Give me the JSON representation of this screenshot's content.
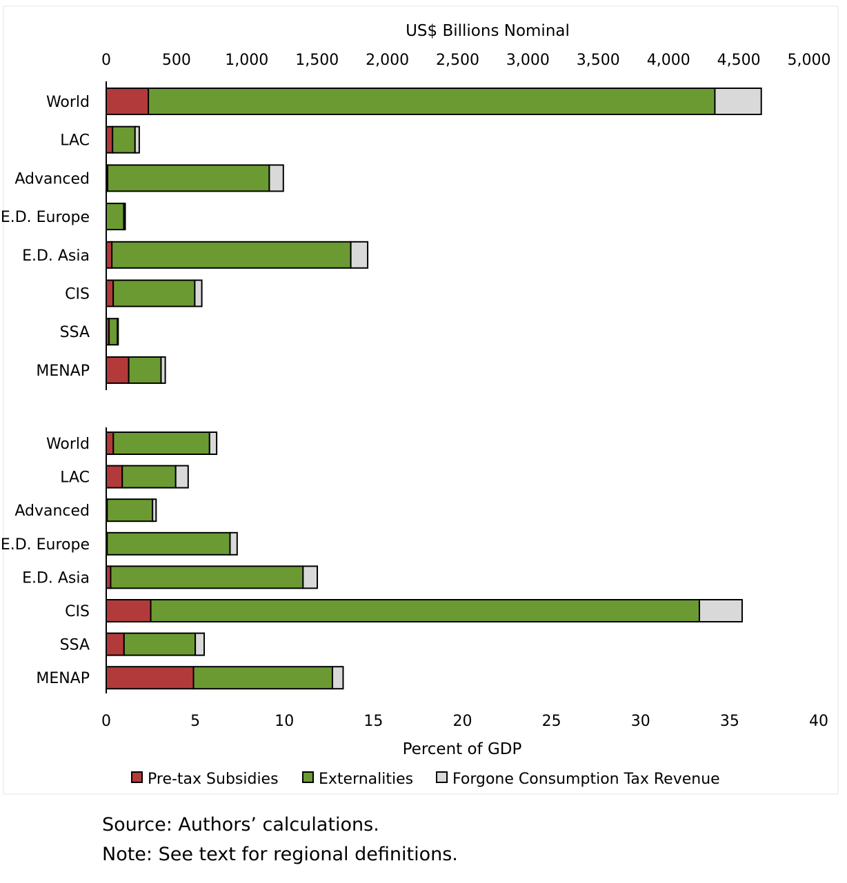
{
  "chart_data": [
    {
      "type": "bar",
      "orientation": "horizontal",
      "stacked": true,
      "xlabel": "US$ Billions  Nominal",
      "xaxis_position": "top",
      "xlim": [
        0,
        5000
      ],
      "xticks": [
        "0",
        "500",
        "1,000",
        "1,500",
        "2,000",
        "2,500",
        "3,000",
        "3,500",
        "4,000",
        "4,500",
        "5,000"
      ],
      "categories": [
        "World",
        "LAC",
        "Advanced",
        "E.D. Europe",
        "E.D. Asia",
        "CIS",
        "SSA",
        "MENAP"
      ],
      "series": [
        {
          "name": "Pre-tax Subsidies",
          "values": [
            300,
            45,
            10,
            0,
            40,
            50,
            20,
            160
          ]
        },
        {
          "name": "Externalities",
          "values": [
            4030,
            160,
            1150,
            125,
            1700,
            580,
            60,
            230
          ]
        },
        {
          "name": "Forgone Consumption Tax Revenue",
          "values": [
            330,
            30,
            100,
            10,
            120,
            50,
            5,
            30
          ]
        }
      ]
    },
    {
      "type": "bar",
      "orientation": "horizontal",
      "stacked": true,
      "xlabel": "Percent of GDP",
      "xaxis_position": "bottom",
      "xlim": [
        0,
        40
      ],
      "xticks": [
        "0",
        "5",
        "10",
        "15",
        "20",
        "25",
        "30",
        "35",
        "40"
      ],
      "categories": [
        "World",
        "LAC",
        "Advanced",
        "E.D. Europe",
        "E.D. Asia",
        "CIS",
        "SSA",
        "MENAP"
      ],
      "series": [
        {
          "name": "Pre-tax Subsidies",
          "values": [
            0.4,
            0.9,
            0.05,
            0.05,
            0.25,
            2.5,
            1.0,
            4.9
          ]
        },
        {
          "name": "Externalities",
          "values": [
            5.4,
            3.0,
            2.55,
            6.9,
            10.8,
            30.8,
            4.0,
            7.8
          ]
        },
        {
          "name": "Forgone Consumption Tax Revenue",
          "values": [
            0.4,
            0.7,
            0.2,
            0.4,
            0.8,
            2.4,
            0.5,
            0.6
          ]
        }
      ]
    }
  ],
  "legend": [
    {
      "label": "Pre-tax Subsidies",
      "color": "#b33a3a"
    },
    {
      "label": "Externalities",
      "color": "#6b9a33"
    },
    {
      "label": "Forgone Consumption Tax Revenue",
      "color": "#d9d9d9"
    }
  ],
  "notes": {
    "source": "Source: Authors’ calculations.",
    "note": "Note: See text for regional definitions."
  }
}
